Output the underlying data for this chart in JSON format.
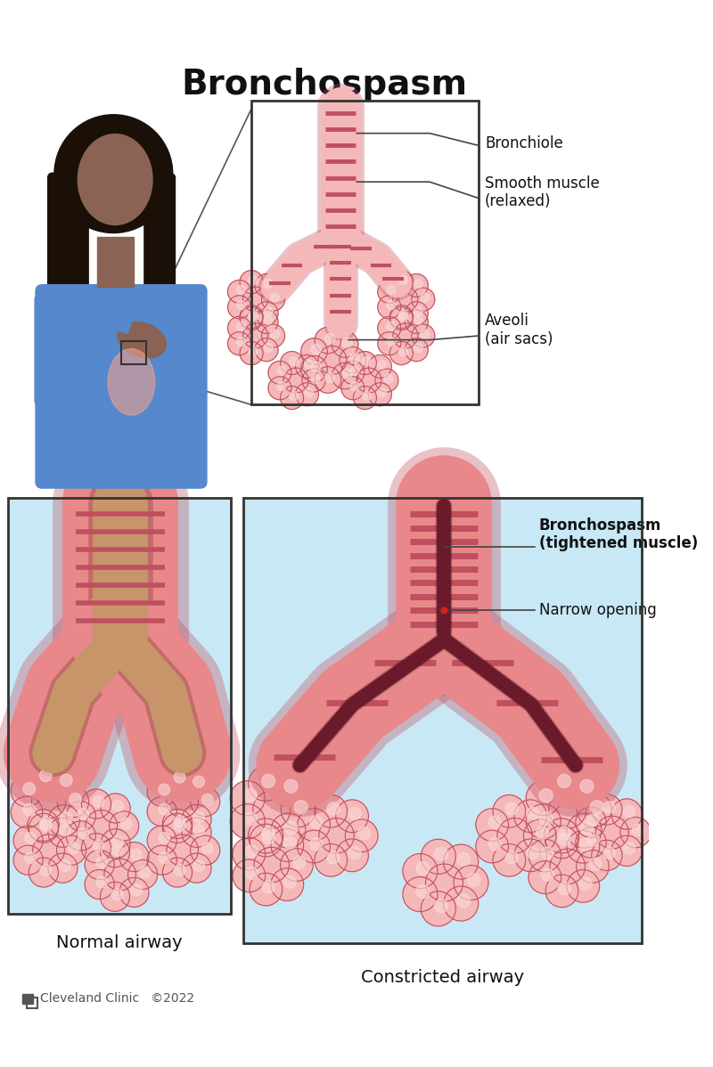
{
  "title": "Bronchospasm",
  "bg_color": "#ffffff",
  "title_fontsize": 28,
  "title_fontweight": "bold",
  "label_bronchiole": "Bronchiole",
  "label_smooth_muscle": "Smooth muscle\n(relaxed)",
  "label_aveoli": "Aveoli\n(air sacs)",
  "label_bronchospasm": "Bronchospasm\n(tightened muscle)",
  "label_narrow": "Narrow opening",
  "label_normal": "Normal airway",
  "label_constricted": "Constricted airway",
  "label_clinic": "Cleveland Clinic   ©2022",
  "pink_light": "#f5b8b8",
  "pink_mid": "#e8888a",
  "pink_dark": "#c05060",
  "pink_very_light": "#fad8d8",
  "airway_tan": "#c8956a",
  "airway_inner": "#7a3a2a",
  "blue_bg": "#c8e8f5",
  "gray_line": "#444444",
  "gray_text": "#555555"
}
